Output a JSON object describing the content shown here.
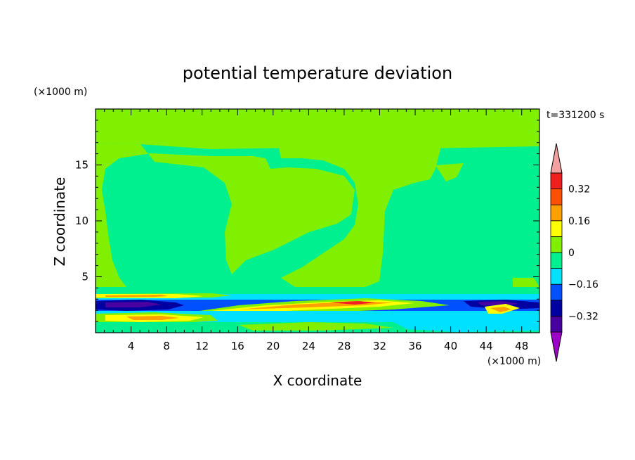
{
  "chart_data": {
    "type": "heatmap",
    "title": "potential temperature deviation",
    "xlabel": "X coordinate",
    "ylabel": "Z coordinate",
    "x_unit": "(×1000 m)",
    "y_unit": "(×1000 m)",
    "time_label": "t=331200 s",
    "xlim": [
      0,
      50
    ],
    "ylim": [
      0,
      20
    ],
    "xticks": [
      4,
      8,
      12,
      16,
      20,
      24,
      28,
      32,
      36,
      40,
      44,
      48
    ],
    "yticks": [
      5,
      10,
      15
    ],
    "colorbar": {
      "levels": [
        -0.4,
        -0.32,
        -0.24,
        -0.16,
        -0.08,
        0,
        0.08,
        0.16,
        0.24,
        0.32,
        0.4
      ],
      "labels": [
        "0.32",
        "0.16",
        "0",
        "−0.16",
        "−0.32"
      ],
      "label_values": [
        0.32,
        0.16,
        0,
        -0.16,
        -0.32
      ],
      "colors": [
        "#9f00c8",
        "#4800a0",
        "#0000a0",
        "#0050ff",
        "#00e0ff",
        "#00f090",
        "#80f000",
        "#ffff00",
        "#ffa000",
        "#ff5000",
        "#f02020",
        "#f4a0a0"
      ]
    },
    "regions": [
      {
        "band": "0",
        "note": "broad upper-level field, X 0-50, Z 4-20"
      },
      {
        "band": "0.08",
        "note": "large lobes over X 0-20 and X 22-42"
      },
      {
        "band": "-0.32",
        "note": "dark-blue core near X 0-10, Z 2.3-2.8"
      },
      {
        "band": "0.16",
        "note": "yellow-orange layer near Z 1.5 and Z 2.5-3"
      },
      {
        "band": "0.32",
        "note": "red streak near X 28-32, Z 2.8"
      },
      {
        "band": "-0.08",
        "note": "cyan layer near Z 0.5-2 across the domain"
      }
    ]
  }
}
